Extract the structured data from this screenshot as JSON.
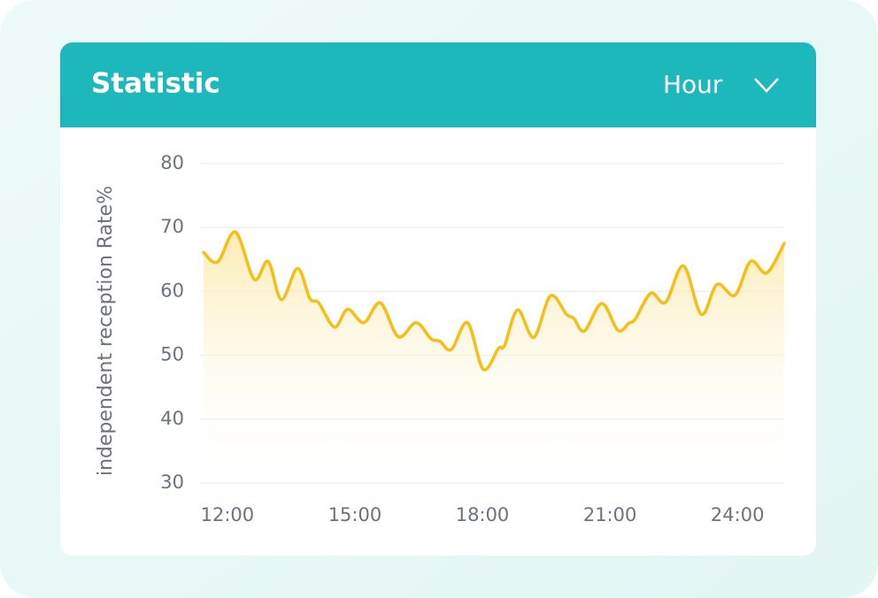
{
  "chart_data": {
    "type": "line",
    "title": "Statistic",
    "dropdown": "Hour",
    "ylabel": "independent reception Rate%",
    "x": [
      11.44,
      11.77,
      12.19,
      12.63,
      12.96,
      13.27,
      13.65,
      13.94,
      14.15,
      14.52,
      14.83,
      15.21,
      15.6,
      16.02,
      16.44,
      16.79,
      17.0,
      17.27,
      17.65,
      18.02,
      18.38,
      18.52,
      18.83,
      19.21,
      19.6,
      19.98,
      20.15,
      20.4,
      20.81,
      21.19,
      21.44,
      21.6,
      21.96,
      22.31,
      22.73,
      23.15,
      23.52,
      23.94,
      24.31,
      24.69,
      25.1
    ],
    "series": [
      {
        "color": "#f6bf16",
        "values": [
          66.1,
          64.6,
          69.3,
          61.9,
          64.7,
          58.7,
          63.6,
          58.9,
          58.2,
          54.4,
          57.2,
          55.1,
          58.2,
          52.9,
          55.1,
          52.6,
          52.2,
          50.9,
          55.1,
          47.8,
          51.1,
          51.5,
          57.1,
          52.8,
          59.3,
          56.4,
          55.8,
          53.8,
          58.1,
          53.9,
          55.0,
          55.7,
          59.7,
          58.3,
          64.0,
          56.4,
          61.1,
          59.4,
          64.7,
          62.9,
          67.5
        ]
      }
    ],
    "xlim": [
      11.44,
      25.1
    ],
    "xticks": [
      {
        "value": 12,
        "label": "12:00"
      },
      {
        "value": 15,
        "label": "15:00"
      },
      {
        "value": 18,
        "label": "18:00"
      },
      {
        "value": 21,
        "label": "21:00"
      },
      {
        "value": 24,
        "label": "24:00"
      }
    ],
    "ylim": [
      30,
      80
    ],
    "yticks": [
      30,
      40,
      50,
      60,
      70,
      80
    ],
    "grid": true
  }
}
